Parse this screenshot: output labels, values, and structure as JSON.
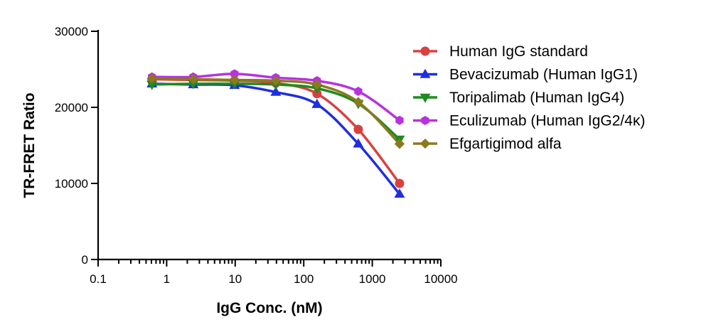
{
  "chart_data": {
    "type": "line",
    "xscale": "log",
    "xlim": [
      0.1,
      10000
    ],
    "ylim": [
      0,
      30000
    ],
    "xticks": [
      {
        "value": 0.1,
        "label": "0.1"
      },
      {
        "value": 1,
        "label": "1"
      },
      {
        "value": 10,
        "label": "10"
      },
      {
        "value": 100,
        "label": "100"
      },
      {
        "value": 1000,
        "label": "1000"
      },
      {
        "value": 10000,
        "label": "10000"
      }
    ],
    "yticks": [
      {
        "value": 0,
        "label": "0"
      },
      {
        "value": 10000,
        "label": "10000"
      },
      {
        "value": 20000,
        "label": "20000"
      },
      {
        "value": 30000,
        "label": "30000"
      }
    ],
    "xlabel": "IgG Conc. (nM)",
    "ylabel": "TR-FRET Ratio",
    "legend_position": "right",
    "grid": false,
    "x": [
      0.61,
      2.44,
      9.77,
      39.1,
      156,
      625,
      2500
    ],
    "series": [
      {
        "name": "Human IgG standard",
        "color": "#d94040",
        "marker": "circle",
        "values": [
          23700,
          23600,
          23500,
          23200,
          21800,
          17100,
          10000
        ]
      },
      {
        "name": "Bevacizumab (Human IgG1)",
        "color": "#1f2ee0",
        "marker": "triangle-up",
        "values": [
          23100,
          23000,
          22900,
          22000,
          20400,
          15200,
          8600
        ]
      },
      {
        "name": "Toripalimab (Human IgG4)",
        "color": "#1f8a1f",
        "marker": "triangle-down",
        "values": [
          23000,
          23100,
          23100,
          23000,
          22500,
          20500,
          15800
        ]
      },
      {
        "name": "Eculizumab (Human IgG2/4κ)",
        "color": "#b832e0",
        "marker": "hexagon",
        "values": [
          24000,
          24000,
          24400,
          23900,
          23500,
          22100,
          18300
        ]
      },
      {
        "name": "Efgartigimod alfa",
        "color": "#8a7a1e",
        "marker": "diamond",
        "values": [
          23800,
          23700,
          23600,
          23500,
          23000,
          20700,
          15200
        ]
      }
    ]
  }
}
